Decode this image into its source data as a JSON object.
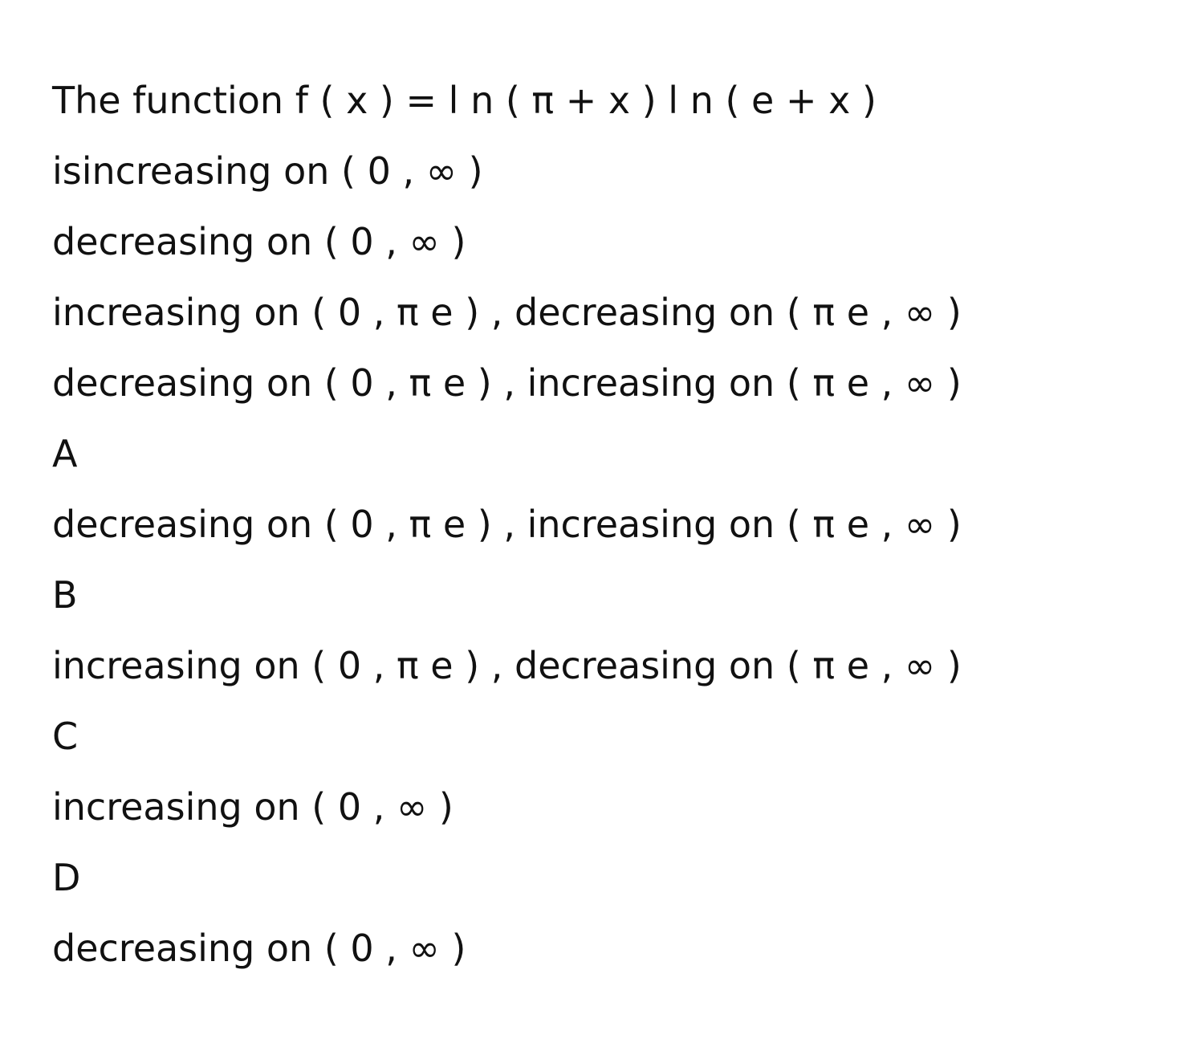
{
  "question": {
    "stem": "The function f ( x ) = l n ( π + x ) l n ( e + x )",
    "inline_options": [
      "isincreasing on ( 0 , ∞ )",
      "decreasing on ( 0 , ∞ )",
      "increasing on ( 0 , π e ) , decreasing on ( π e , ∞ )",
      "decreasing on ( 0 , π e ) , increasing on ( π e , ∞ )"
    ]
  },
  "choices": [
    {
      "letter": "A",
      "text": "decreasing on ( 0 , π e ) , increasing on ( π e , ∞ )"
    },
    {
      "letter": "B",
      "text": "increasing on ( 0 , π e ) , decreasing on ( π e , ∞ )"
    },
    {
      "letter": "C",
      "text": "increasing on ( 0 , ∞ )"
    },
    {
      "letter": "D",
      "text": "decreasing on ( 0 , ∞ )"
    }
  ]
}
